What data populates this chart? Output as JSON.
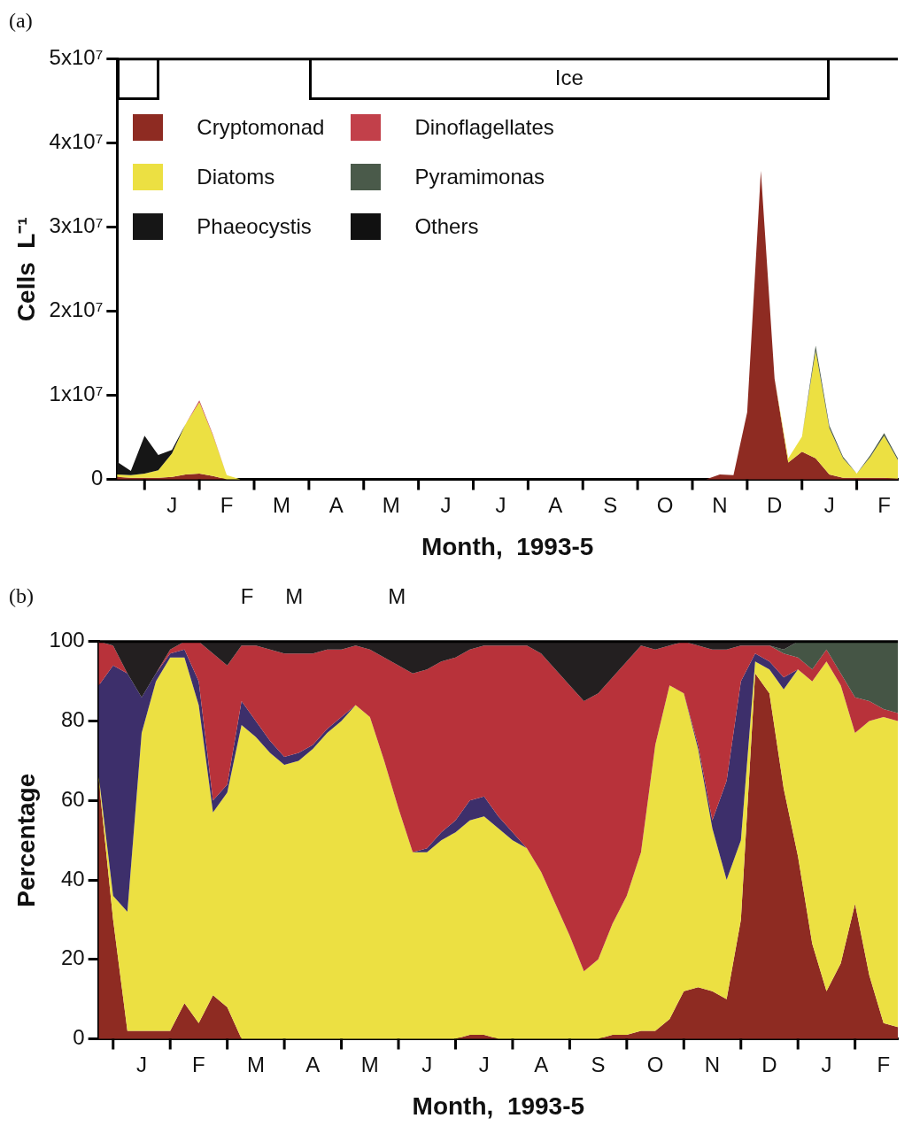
{
  "chart_data": [
    {
      "type": "area",
      "title": "(a)",
      "xlabel": "Month,  1993-5",
      "ylabel": "Cells  L⁻¹",
      "stacked": true,
      "legend": "top left",
      "annotations": [
        "Ice"
      ],
      "categories": [
        null,
        null,
        null,
        null,
        "J",
        null,
        null,
        null,
        "F",
        null,
        null,
        null,
        "M",
        null,
        null,
        null,
        "A",
        null,
        null,
        null,
        "M",
        null,
        null,
        null,
        "J",
        null,
        null,
        null,
        "J",
        null,
        null,
        null,
        "A",
        null,
        null,
        null,
        "S",
        null,
        null,
        null,
        "O",
        null,
        null,
        null,
        "N",
        null,
        null,
        null,
        "D",
        null,
        null,
        null,
        "J",
        null,
        null,
        null,
        "F",
        null
      ],
      "series": [
        {
          "name": "Cryptomonad",
          "color": "#8e2b22",
          "values": [
            300000,
            200000,
            200000,
            200000,
            300000,
            600000,
            700000,
            400000,
            0,
            0,
            0,
            0,
            0,
            0,
            0,
            0,
            0,
            0,
            0,
            0,
            0,
            0,
            0,
            0,
            0,
            0,
            0,
            0,
            0,
            0,
            0,
            0,
            0,
            0,
            0,
            0,
            0,
            0,
            0,
            0,
            0,
            0,
            0,
            0,
            600000,
            500000,
            8000000,
            36700000,
            12000000,
            2000000,
            3300000,
            2500000,
            600000,
            200000,
            200000,
            200000,
            200000,
            100000
          ]
        },
        {
          "name": "Diatoms",
          "color": "#ece042",
          "values": [
            300000,
            300000,
            500000,
            900000,
            2800000,
            6000000,
            8500000,
            4800000,
            500000,
            0,
            null,
            null,
            null,
            null,
            null,
            null,
            null,
            null,
            null,
            null,
            null,
            null,
            null,
            null,
            null,
            null,
            null,
            null,
            null,
            null,
            null,
            null,
            null,
            null,
            null,
            null,
            null,
            null,
            null,
            null,
            null,
            null,
            null,
            null,
            null,
            null,
            null,
            null,
            0,
            500000,
            1800000,
            12800000,
            5500000,
            2300000,
            500000,
            2500000,
            5000000,
            2200000
          ]
        },
        {
          "name": "Phaeocystis",
          "color": "#161616",
          "values": [
            1500000,
            500000,
            4500000,
            1800000,
            400000,
            0,
            null,
            null,
            null,
            null,
            null,
            null,
            null,
            null,
            null,
            null,
            null,
            null,
            null,
            null,
            null,
            null,
            null,
            null,
            null,
            null,
            null,
            null,
            null,
            null,
            null,
            null,
            null,
            null,
            null,
            null,
            null,
            null,
            null,
            null,
            null,
            null,
            null,
            null,
            null,
            null,
            null,
            null,
            null,
            null,
            null,
            null,
            null,
            null,
            null,
            null,
            null,
            null
          ]
        },
        {
          "name": "Dinoflagellates",
          "color": "#c2404a",
          "values": [
            null,
            null,
            null,
            null,
            null,
            0,
            200000,
            100000,
            0,
            null,
            null,
            null,
            null,
            null,
            null,
            null,
            null,
            null,
            null,
            null,
            null,
            null,
            null,
            null,
            null,
            null,
            null,
            null,
            null,
            null,
            null,
            null,
            null,
            null,
            null,
            null,
            null,
            null,
            null,
            null,
            null,
            null,
            null,
            null,
            null,
            null,
            null,
            null,
            null,
            null,
            null,
            null,
            null,
            null,
            null,
            null,
            null,
            null
          ]
        },
        {
          "name": "Pyramimonas",
          "color": "#4a5a4a",
          "values": [
            null,
            null,
            null,
            null,
            null,
            null,
            null,
            null,
            null,
            null,
            null,
            null,
            null,
            null,
            null,
            null,
            null,
            null,
            null,
            null,
            null,
            null,
            null,
            null,
            null,
            null,
            null,
            null,
            null,
            null,
            null,
            null,
            null,
            null,
            null,
            null,
            null,
            null,
            null,
            null,
            null,
            null,
            null,
            null,
            null,
            null,
            null,
            null,
            null,
            null,
            0,
            600000,
            300000,
            200000,
            0,
            200000,
            300000,
            200000
          ]
        },
        {
          "name": "Others",
          "color": "#111111",
          "values": [
            null,
            null,
            null,
            null,
            null,
            null,
            null,
            null,
            null,
            null,
            null,
            null,
            null,
            null,
            null,
            null,
            null,
            null,
            null,
            null,
            null,
            null,
            null,
            null,
            null,
            null,
            null,
            null,
            null,
            null,
            null,
            null,
            null,
            null,
            null,
            null,
            null,
            null,
            null,
            null,
            null,
            null,
            null,
            null,
            null,
            null,
            null,
            null,
            null,
            null,
            null,
            null,
            null,
            null,
            null,
            null,
            null,
            null
          ]
        }
      ],
      "ylim": [
        0,
        50000000
      ],
      "yticks": [
        0,
        {
          "value": 10000000,
          "label": "1x10⁷"
        },
        {
          "value": 20000000,
          "label": "2x10⁷"
        },
        {
          "value": 30000000,
          "label": "3x10⁷"
        },
        {
          "value": 40000000,
          "label": "4x10⁷"
        },
        {
          "value": 50000000,
          "label": "5x10⁷"
        }
      ]
    },
    {
      "type": "area",
      "title": "(b)",
      "xlabel": "Month,  1993-5",
      "ylabel": "Percentage",
      "stacked": true,
      "annotations": [
        "F",
        "M",
        "M"
      ],
      "categories": [
        null,
        null,
        null,
        "J",
        null,
        null,
        null,
        "F",
        null,
        null,
        null,
        "M",
        null,
        null,
        null,
        "A",
        null,
        null,
        null,
        "M",
        null,
        null,
        null,
        "J",
        null,
        null,
        null,
        "J",
        null,
        null,
        null,
        "A",
        null,
        null,
        null,
        "S",
        null,
        null,
        null,
        "O",
        null,
        null,
        null,
        "N",
        null,
        null,
        null,
        "D",
        null,
        null,
        null,
        "J",
        null,
        null,
        null,
        "F",
        null
      ],
      "series": [
        {
          "color": "#8e2b22",
          "values": [
            65,
            30,
            2,
            2,
            2,
            2,
            9,
            4,
            11,
            8,
            0,
            0,
            0,
            0,
            0,
            0,
            0,
            0,
            0,
            0,
            0,
            0,
            0,
            0,
            0,
            0,
            1,
            1,
            0,
            0,
            0,
            0,
            0,
            0,
            0,
            0,
            1,
            1,
            2,
            2,
            5,
            12,
            13,
            12,
            10,
            30,
            92,
            87,
            63,
            46,
            24,
            12,
            19,
            34,
            16,
            4,
            3
          ]
        },
        {
          "color": "#ece042",
          "values": [
            1,
            6,
            30,
            75,
            88,
            94,
            87,
            80,
            46,
            54,
            79,
            76,
            72,
            69,
            70,
            73,
            77,
            80,
            84,
            81,
            70,
            58,
            47,
            47,
            50,
            52,
            54,
            55,
            53,
            50,
            48,
            42,
            34,
            26,
            17,
            20,
            28,
            35,
            45,
            72,
            84,
            75,
            60,
            41,
            30,
            20,
            3,
            6,
            25,
            47,
            66,
            83,
            70,
            43,
            64,
            77,
            77
          ]
        },
        {
          "color": "#3d2f6b",
          "values": [
            23,
            58,
            60,
            9,
            2,
            1,
            2,
            6,
            3,
            2,
            6,
            4,
            3,
            2,
            2,
            1,
            1,
            1,
            0,
            0,
            0,
            0,
            0,
            1,
            2,
            3,
            5,
            5,
            3,
            2,
            0,
            0,
            0,
            0,
            0,
            0,
            0,
            0,
            0,
            0,
            0,
            0,
            1,
            2,
            25,
            40,
            2,
            2,
            3,
            0,
            0,
            0,
            0,
            0,
            0,
            0,
            0
          ]
        },
        {
          "color": "#b8323a",
          "values": [
            11,
            5,
            0,
            0,
            0,
            1,
            2,
            10,
            37,
            30,
            14,
            19,
            23,
            26,
            25,
            23,
            20,
            17,
            15,
            17,
            26,
            36,
            45,
            45,
            43,
            41,
            38,
            38,
            43,
            47,
            51,
            55,
            59,
            63,
            68,
            67,
            62,
            59,
            52,
            24,
            10,
            13,
            25,
            43,
            33,
            9,
            2,
            4,
            6,
            3,
            3,
            3,
            3,
            9,
            5,
            2,
            2
          ]
        },
        {
          "color": "#455545",
          "values": [
            0,
            0,
            0,
            0,
            0,
            0,
            0,
            0,
            0,
            0,
            0,
            0,
            0,
            0,
            0,
            0,
            0,
            0,
            0,
            0,
            0,
            0,
            0,
            0,
            0,
            0,
            0,
            0,
            0,
            0,
            0,
            0,
            0,
            0,
            0,
            0,
            0,
            0,
            0,
            0,
            0,
            0,
            0,
            0,
            0,
            0,
            0,
            0,
            1,
            4,
            7,
            2,
            8,
            14,
            15,
            17,
            18
          ]
        },
        {
          "color": "#231f20",
          "values": [
            0,
            1,
            8,
            14,
            8,
            2,
            0,
            0,
            3,
            6,
            1,
            1,
            2,
            3,
            3,
            3,
            2,
            2,
            1,
            2,
            4,
            6,
            8,
            7,
            5,
            4,
            2,
            1,
            1,
            1,
            1,
            3,
            7,
            11,
            15,
            13,
            9,
            5,
            1,
            2,
            1,
            0,
            1,
            2,
            2,
            1,
            1,
            1,
            2,
            0,
            0,
            0,
            0,
            0,
            0,
            0,
            0
          ]
        }
      ],
      "ylim": [
        0,
        100
      ],
      "yticks": [
        0,
        20,
        40,
        60,
        80,
        100
      ]
    }
  ]
}
